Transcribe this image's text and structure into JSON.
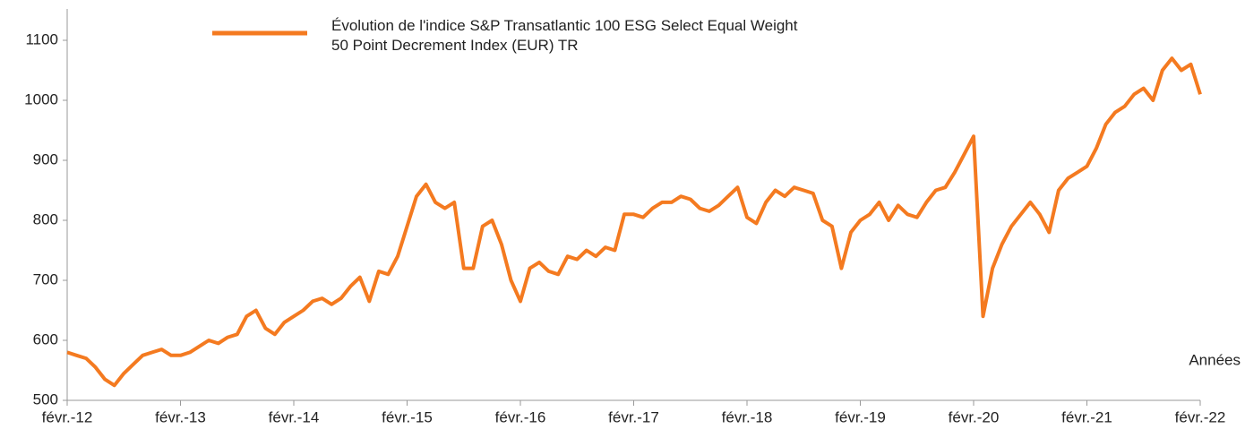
{
  "chart_data": {
    "type": "line",
    "x_label": "Années",
    "categories": [
      "févr.-12",
      null,
      null,
      null,
      null,
      null,
      null,
      null,
      null,
      null,
      null,
      null,
      "févr.-13",
      null,
      null,
      null,
      null,
      null,
      null,
      null,
      null,
      null,
      null,
      null,
      "févr.-14",
      null,
      null,
      null,
      null,
      null,
      null,
      null,
      null,
      null,
      null,
      null,
      "févr.-15",
      null,
      null,
      null,
      null,
      null,
      null,
      null,
      null,
      null,
      null,
      null,
      "févr.-16",
      null,
      null,
      null,
      null,
      null,
      null,
      null,
      null,
      null,
      null,
      null,
      "févr.-17",
      null,
      null,
      null,
      null,
      null,
      null,
      null,
      null,
      null,
      null,
      null,
      "févr.-18",
      null,
      null,
      null,
      null,
      null,
      null,
      null,
      null,
      null,
      null,
      null,
      "févr.-19",
      null,
      null,
      null,
      null,
      null,
      null,
      null,
      null,
      null,
      null,
      null,
      "févr.-20",
      null,
      null,
      null,
      null,
      null,
      null,
      null,
      null,
      null,
      null,
      null,
      "févr.-21",
      null,
      null,
      null,
      null,
      null,
      null,
      null,
      null,
      null,
      null,
      null,
      "févr.-22"
    ],
    "series": [
      {
        "name": "Évolution de l'indice S&P Transatlantic 100 ESG Select Equal Weight 50 Point Decrement Index (EUR) TR",
        "color": "#f47a20",
        "values": [
          580,
          575,
          570,
          555,
          535,
          525,
          545,
          560,
          575,
          580,
          585,
          575,
          575,
          580,
          590,
          600,
          595,
          605,
          610,
          640,
          650,
          620,
          610,
          630,
          640,
          650,
          665,
          670,
          660,
          670,
          690,
          705,
          665,
          715,
          710,
          740,
          790,
          840,
          860,
          830,
          820,
          830,
          720,
          720,
          790,
          800,
          760,
          700,
          665,
          720,
          730,
          715,
          710,
          740,
          735,
          750,
          740,
          755,
          750,
          810,
          810,
          805,
          820,
          830,
          830,
          840,
          835,
          820,
          815,
          825,
          840,
          855,
          805,
          795,
          830,
          850,
          840,
          855,
          850,
          845,
          800,
          790,
          720,
          780,
          800,
          810,
          830,
          800,
          825,
          810,
          805,
          830,
          850,
          855,
          880,
          910,
          940,
          640,
          720,
          760,
          790,
          810,
          830,
          810,
          780,
          850,
          870,
          880,
          890,
          920,
          960,
          980,
          990,
          1010,
          1020,
          1000,
          1050,
          1070,
          1050,
          1060,
          1010
        ]
      }
    ],
    "ylim": [
      500,
      1100
    ],
    "yticks": [
      500,
      600,
      700,
      800,
      900,
      1000,
      1100
    ]
  }
}
